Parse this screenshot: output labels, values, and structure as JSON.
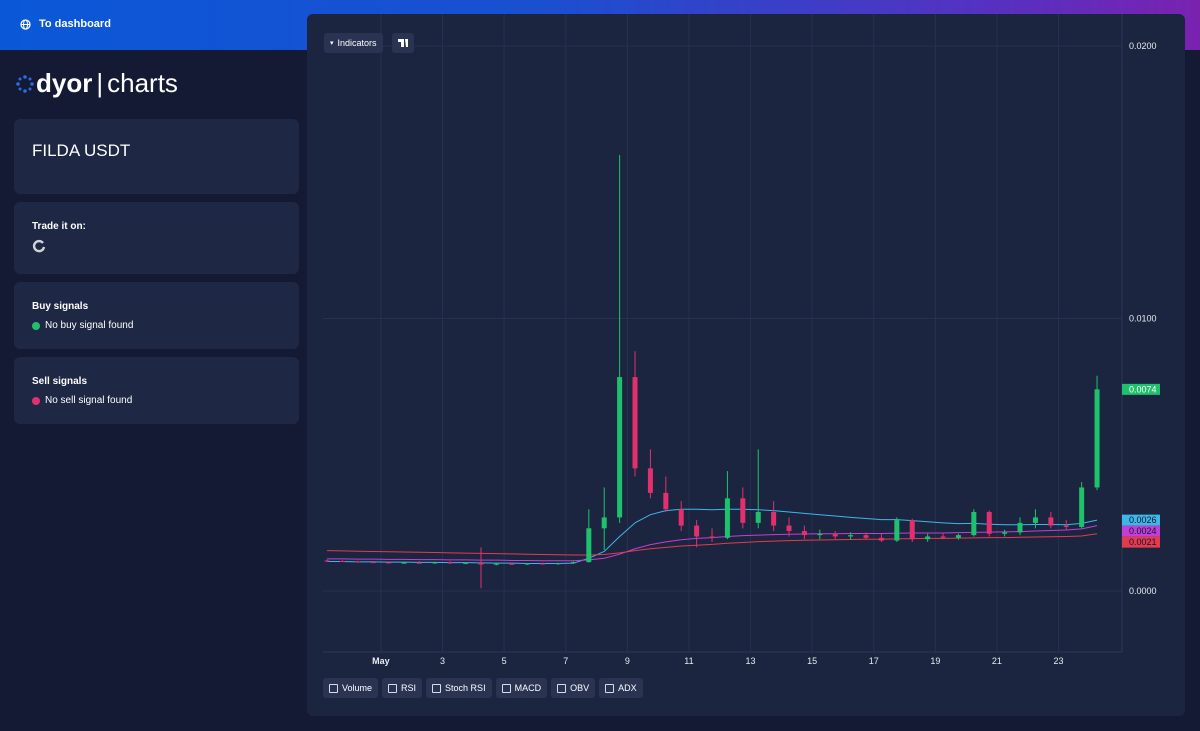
{
  "top_bar": {
    "link": "To dashboard"
  },
  "logo": {
    "brand": "dyor",
    "product": "charts"
  },
  "pair_card": {
    "title": "FILDA USDT"
  },
  "trade_card": {
    "title": "Trade it on:"
  },
  "buy_card": {
    "title": "Buy signals",
    "status": "No buy signal found"
  },
  "sell_card": {
    "title": "Sell signals",
    "status": "No sell signal found"
  },
  "toolbar": {
    "indicators": "Indicators"
  },
  "indicator_toggles": [
    "Volume",
    "RSI",
    "Stoch RSI",
    "MACD",
    "OBV",
    "ADX"
  ],
  "chart_data": {
    "type": "candlestick",
    "x": [
      -0.75,
      -0.25,
      0.25,
      0.75,
      1.25,
      1.75,
      2.25,
      2.75,
      3.25,
      3.75,
      4.25,
      4.75,
      5.25,
      5.75,
      6.25,
      6.75,
      7.25,
      7.75,
      8.25,
      8.75,
      9.25,
      9.75,
      10.25,
      10.75,
      11.25,
      11.75,
      12.25,
      12.75,
      13.25,
      13.75,
      14.25,
      14.75,
      15.25,
      15.75,
      16.25,
      16.75,
      17.25,
      17.75,
      18.25,
      18.75,
      19.25,
      19.75,
      20.25,
      20.75,
      21.25,
      21.75,
      22.25,
      22.75,
      23.25,
      23.75,
      24.25
    ],
    "open": [
      0.00112,
      0.0011,
      0.00108,
      0.00106,
      0.00105,
      0.00103,
      0.00104,
      0.00102,
      0.00105,
      0.00101,
      0.00103,
      0.00097,
      0.001,
      0.00098,
      0.00101,
      0.00099,
      0.00102,
      0.00106,
      0.0023,
      0.0027,
      0.00785,
      0.0045,
      0.0036,
      0.003,
      0.0024,
      0.002,
      0.00195,
      0.0034,
      0.0025,
      0.0029,
      0.0024,
      0.0022,
      0.00205,
      0.0021,
      0.002,
      0.00205,
      0.00195,
      0.00185,
      0.0026,
      0.0019,
      0.002,
      0.00195,
      0.00205,
      0.0029,
      0.0021,
      0.00215,
      0.0025,
      0.0027,
      0.0024,
      0.00235,
      0.0038
    ],
    "high": [
      0.00115,
      0.00113,
      0.00111,
      0.0011,
      0.00109,
      0.00108,
      0.0011,
      0.00107,
      0.0011,
      0.00106,
      0.0016,
      0.00104,
      0.00104,
      0.00103,
      0.00105,
      0.00104,
      0.00108,
      0.003,
      0.0038,
      0.016,
      0.0088,
      0.0052,
      0.0042,
      0.0033,
      0.0026,
      0.0023,
      0.0044,
      0.0038,
      0.0052,
      0.0033,
      0.0027,
      0.0024,
      0.00225,
      0.0022,
      0.00215,
      0.00215,
      0.0021,
      0.0027,
      0.00265,
      0.0021,
      0.00215,
      0.0021,
      0.003,
      0.00295,
      0.00225,
      0.0027,
      0.003,
      0.0029,
      0.0026,
      0.004,
      0.0079
    ],
    "low": [
      0.00108,
      0.00106,
      0.00104,
      0.00103,
      0.00101,
      0.001,
      0.00101,
      0.00099,
      0.001,
      0.00098,
      0.0001,
      0.00094,
      0.00096,
      0.00095,
      0.00097,
      0.00096,
      0.00099,
      0.00104,
      0.0015,
      0.0025,
      0.0042,
      0.0034,
      0.0029,
      0.0022,
      0.0016,
      0.0018,
      0.0019,
      0.0023,
      0.0023,
      0.0022,
      0.002,
      0.0019,
      0.0019,
      0.0019,
      0.00188,
      0.0019,
      0.0018,
      0.0018,
      0.0018,
      0.0018,
      0.0019,
      0.00188,
      0.002,
      0.002,
      0.002,
      0.00205,
      0.0023,
      0.0023,
      0.00225,
      0.0023,
      0.0037
    ],
    "close": [
      0.0011,
      0.00108,
      0.00106,
      0.00105,
      0.00103,
      0.00104,
      0.00102,
      0.00105,
      0.00101,
      0.00103,
      0.00097,
      0.001,
      0.00098,
      0.00101,
      0.00099,
      0.00102,
      0.00106,
      0.0023,
      0.0027,
      0.00785,
      0.0045,
      0.0036,
      0.003,
      0.0024,
      0.002,
      0.00195,
      0.0034,
      0.0025,
      0.0029,
      0.0024,
      0.0022,
      0.00205,
      0.0021,
      0.002,
      0.00205,
      0.00195,
      0.00185,
      0.0026,
      0.0019,
      0.002,
      0.00195,
      0.00205,
      0.0029,
      0.0021,
      0.00215,
      0.0025,
      0.0027,
      0.0024,
      0.00235,
      0.0038,
      0.0074
    ],
    "up_color": "#1fc26c",
    "down_color": "#e2306f",
    "series": [
      {
        "color": "#3fb6e8",
        "values": [
          0.00108,
          0.00108,
          0.00107,
          0.00107,
          0.00106,
          0.00106,
          0.00105,
          0.00105,
          0.00104,
          0.00104,
          0.00103,
          0.00102,
          0.00102,
          0.00101,
          0.00101,
          0.00101,
          0.00102,
          0.0012,
          0.00145,
          0.002,
          0.0025,
          0.0028,
          0.00295,
          0.003,
          0.003,
          0.00298,
          0.003,
          0.003,
          0.00298,
          0.00295,
          0.0029,
          0.00285,
          0.0028,
          0.00275,
          0.0027,
          0.00266,
          0.00262,
          0.00262,
          0.00258,
          0.00254,
          0.0025,
          0.00247,
          0.00248,
          0.00245,
          0.00243,
          0.00243,
          0.00244,
          0.00244,
          0.00243,
          0.00248,
          0.0026
        ]
      },
      {
        "color": "#c13fd6",
        "values": [
          0.00118,
          0.00118,
          0.00117,
          0.00117,
          0.00116,
          0.00116,
          0.00115,
          0.00115,
          0.00114,
          0.00114,
          0.00113,
          0.00113,
          0.00112,
          0.00112,
          0.00111,
          0.00111,
          0.00111,
          0.00114,
          0.0012,
          0.00135,
          0.00155,
          0.0017,
          0.0018,
          0.00188,
          0.00193,
          0.00196,
          0.002,
          0.00203,
          0.00205,
          0.00207,
          0.00208,
          0.00209,
          0.0021,
          0.0021,
          0.00211,
          0.00211,
          0.00211,
          0.00212,
          0.00213,
          0.00213,
          0.00213,
          0.00214,
          0.00215,
          0.00216,
          0.00217,
          0.00218,
          0.0022,
          0.00222,
          0.00224,
          0.00228,
          0.0024
        ]
      },
      {
        "color": "#e33b4e",
        "values": [
          0.00148,
          0.00147,
          0.00146,
          0.00145,
          0.00144,
          0.00143,
          0.00142,
          0.00141,
          0.0014,
          0.00139,
          0.00138,
          0.00137,
          0.00136,
          0.00135,
          0.00134,
          0.00133,
          0.00132,
          0.00132,
          0.00134,
          0.0014,
          0.00148,
          0.00155,
          0.0016,
          0.00165,
          0.00168,
          0.00171,
          0.00175,
          0.00178,
          0.00181,
          0.00183,
          0.00185,
          0.00186,
          0.00187,
          0.00188,
          0.00189,
          0.0019,
          0.0019,
          0.00191,
          0.00192,
          0.00193,
          0.00193,
          0.00194,
          0.00195,
          0.00196,
          0.00196,
          0.00197,
          0.00198,
          0.00199,
          0.002,
          0.00202,
          0.0021
        ]
      }
    ],
    "last_labels": [
      0.0074,
      0.0026,
      0.0024,
      0.0021
    ],
    "xlim": [
      -0.88,
      25.06
    ],
    "ylim": [
      -0.00224,
      0.02059
    ],
    "xticks": [
      {
        "value": 1,
        "label": "May"
      },
      3,
      5,
      7,
      9,
      11,
      13,
      15,
      17,
      19,
      21,
      23
    ],
    "yticks": [
      {
        "value": 0,
        "label": "0.0000"
      },
      {
        "value": 0.01,
        "label": "0.0100"
      },
      {
        "value": 0.02,
        "label": "0.0200"
      }
    ],
    "grid": true
  }
}
